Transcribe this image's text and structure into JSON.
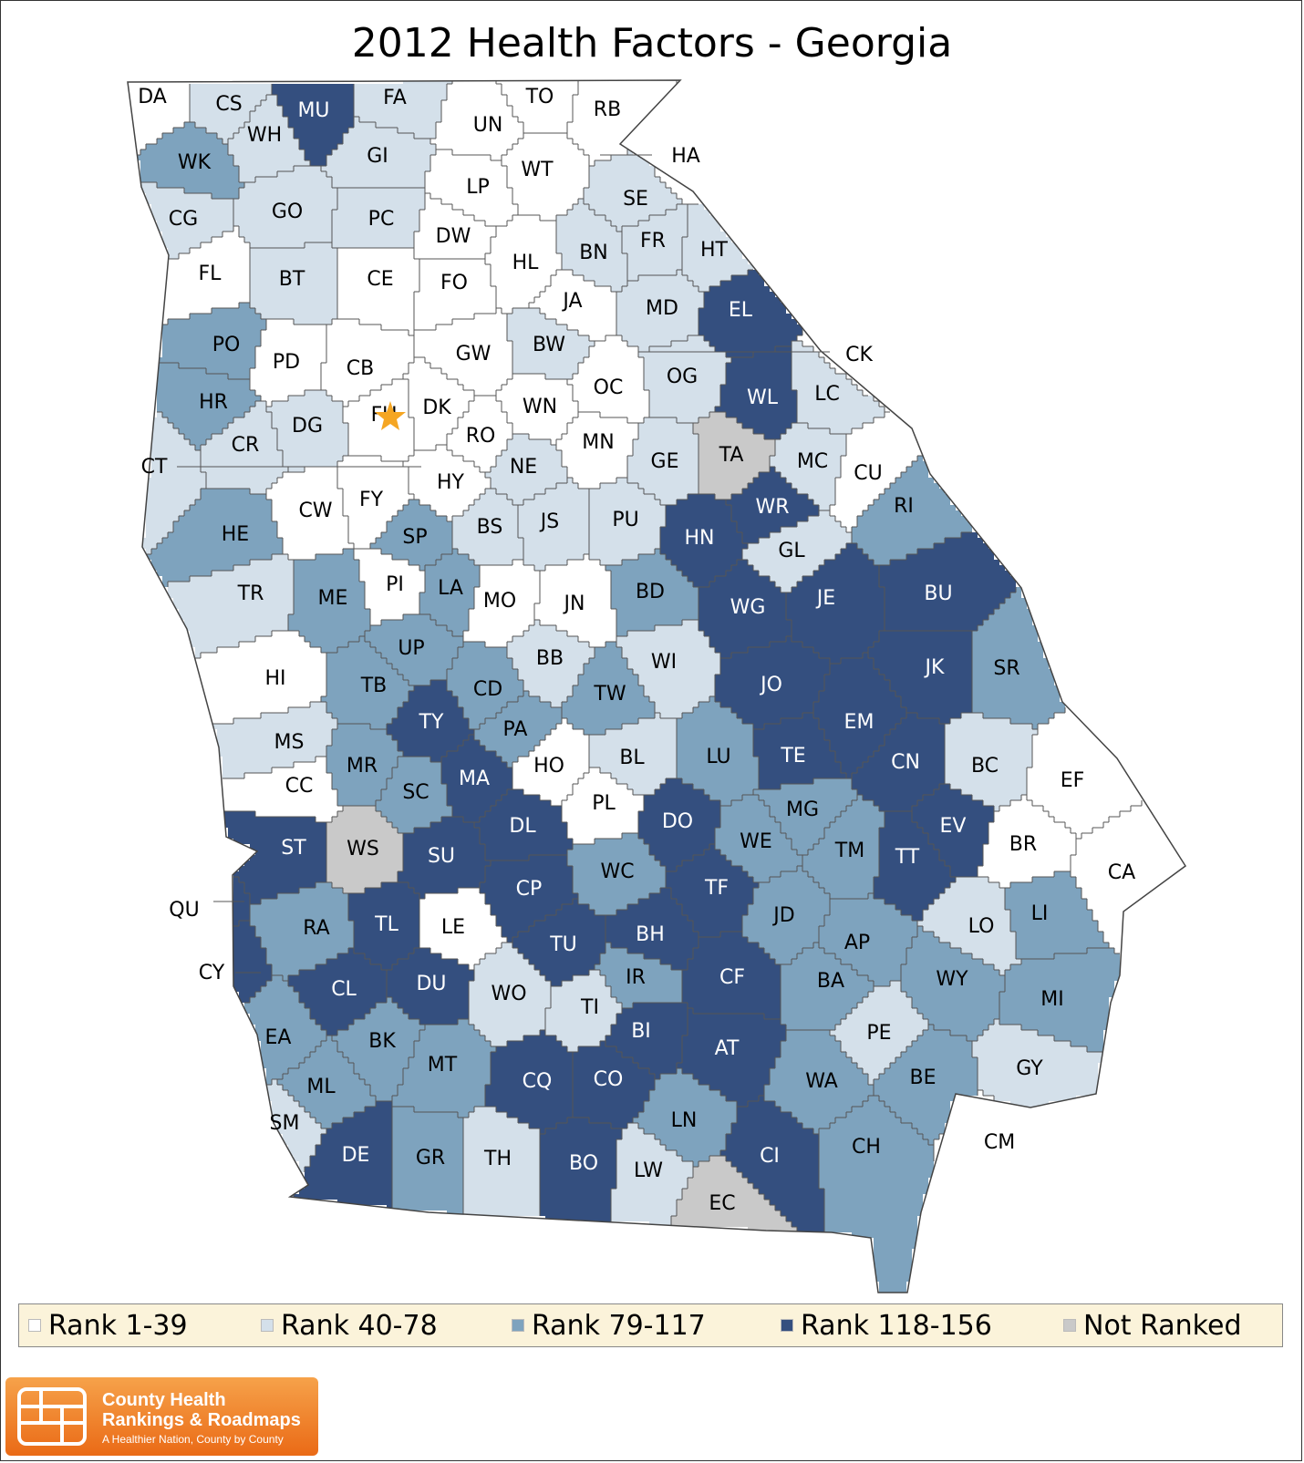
{
  "title": "2012 Health Factors - Georgia",
  "colors": {
    "rank_1_39": "#ffffff",
    "rank_40_78": "#d4e0ea",
    "rank_79_117": "#7ea3be",
    "rank_118_156": "#344f7f",
    "not_ranked": "#c9c9c9",
    "capital_star": "#f5a623"
  },
  "legend": [
    {
      "label": "Rank 1-39",
      "category": "rank_1_39"
    },
    {
      "label": "Rank 40-78",
      "category": "rank_40_78"
    },
    {
      "label": "Rank 79-117",
      "category": "rank_79_117"
    },
    {
      "label": "Rank 118-156",
      "category": "rank_118_156"
    },
    {
      "label": "Not Ranked",
      "category": "not_ranked"
    }
  ],
  "capital": "FU",
  "counties": [
    {
      "code": "DA",
      "category": "rank_1_39"
    },
    {
      "code": "CS",
      "category": "rank_40_78"
    },
    {
      "code": "WH",
      "category": "rank_40_78"
    },
    {
      "code": "MU",
      "category": "rank_118_156"
    },
    {
      "code": "FA",
      "category": "rank_40_78"
    },
    {
      "code": "TO",
      "category": "rank_1_39"
    },
    {
      "code": "UN",
      "category": "rank_1_39"
    },
    {
      "code": "RB",
      "category": "rank_1_39"
    },
    {
      "code": "WK",
      "category": "rank_79_117"
    },
    {
      "code": "GI",
      "category": "rank_40_78"
    },
    {
      "code": "HA",
      "category": "rank_1_39"
    },
    {
      "code": "WT",
      "category": "rank_1_39"
    },
    {
      "code": "LP",
      "category": "rank_1_39"
    },
    {
      "code": "SE",
      "category": "rank_40_78"
    },
    {
      "code": "CG",
      "category": "rank_40_78"
    },
    {
      "code": "GO",
      "category": "rank_40_78"
    },
    {
      "code": "PC",
      "category": "rank_40_78"
    },
    {
      "code": "DW",
      "category": "rank_1_39"
    },
    {
      "code": "BN",
      "category": "rank_40_78"
    },
    {
      "code": "FR",
      "category": "rank_40_78"
    },
    {
      "code": "HT",
      "category": "rank_40_78"
    },
    {
      "code": "FL",
      "category": "rank_1_39"
    },
    {
      "code": "BT",
      "category": "rank_40_78"
    },
    {
      "code": "CE",
      "category": "rank_1_39"
    },
    {
      "code": "HL",
      "category": "rank_1_39"
    },
    {
      "code": "FO",
      "category": "rank_1_39"
    },
    {
      "code": "JA",
      "category": "rank_1_39"
    },
    {
      "code": "MD",
      "category": "rank_40_78"
    },
    {
      "code": "EL",
      "category": "rank_118_156"
    },
    {
      "code": "PO",
      "category": "rank_79_117"
    },
    {
      "code": "PD",
      "category": "rank_1_39"
    },
    {
      "code": "CB",
      "category": "rank_1_39"
    },
    {
      "code": "BW",
      "category": "rank_40_78"
    },
    {
      "code": "GW",
      "category": "rank_1_39"
    },
    {
      "code": "CK",
      "category": "rank_1_39"
    },
    {
      "code": "OG",
      "category": "rank_40_78"
    },
    {
      "code": "OC",
      "category": "rank_1_39"
    },
    {
      "code": "HR",
      "category": "rank_79_117"
    },
    {
      "code": "WN",
      "category": "rank_1_39"
    },
    {
      "code": "WL",
      "category": "rank_118_156"
    },
    {
      "code": "LC",
      "category": "rank_40_78"
    },
    {
      "code": "DK",
      "category": "rank_1_39"
    },
    {
      "code": "FU",
      "category": "rank_1_39"
    },
    {
      "code": "DG",
      "category": "rank_40_78"
    },
    {
      "code": "CR",
      "category": "rank_40_78"
    },
    {
      "code": "RO",
      "category": "rank_1_39"
    },
    {
      "code": "MN",
      "category": "rank_1_39"
    },
    {
      "code": "TA",
      "category": "not_ranked"
    },
    {
      "code": "MC",
      "category": "rank_40_78"
    },
    {
      "code": "CT",
      "category": "rank_40_78"
    },
    {
      "code": "GE",
      "category": "rank_40_78"
    },
    {
      "code": "NE",
      "category": "rank_40_78"
    },
    {
      "code": "HY",
      "category": "rank_1_39"
    },
    {
      "code": "CU",
      "category": "rank_1_39"
    },
    {
      "code": "CW",
      "category": "rank_1_39"
    },
    {
      "code": "FY",
      "category": "rank_1_39"
    },
    {
      "code": "WR",
      "category": "rank_118_156"
    },
    {
      "code": "RI",
      "category": "rank_79_117"
    },
    {
      "code": "JS",
      "category": "rank_40_78"
    },
    {
      "code": "PU",
      "category": "rank_40_78"
    },
    {
      "code": "HN",
      "category": "rank_118_156"
    },
    {
      "code": "HE",
      "category": "rank_79_117"
    },
    {
      "code": "BS",
      "category": "rank_40_78"
    },
    {
      "code": "SP",
      "category": "rank_79_117"
    },
    {
      "code": "GL",
      "category": "rank_40_78"
    },
    {
      "code": "BU",
      "category": "rank_118_156"
    },
    {
      "code": "TR",
      "category": "rank_40_78"
    },
    {
      "code": "ME",
      "category": "rank_79_117"
    },
    {
      "code": "PI",
      "category": "rank_1_39"
    },
    {
      "code": "LA",
      "category": "rank_79_117"
    },
    {
      "code": "MO",
      "category": "rank_1_39"
    },
    {
      "code": "JN",
      "category": "rank_1_39"
    },
    {
      "code": "BD",
      "category": "rank_79_117"
    },
    {
      "code": "WG",
      "category": "rank_118_156"
    },
    {
      "code": "JE",
      "category": "rank_118_156"
    },
    {
      "code": "UP",
      "category": "rank_79_117"
    },
    {
      "code": "BB",
      "category": "rank_40_78"
    },
    {
      "code": "WI",
      "category": "rank_40_78"
    },
    {
      "code": "JK",
      "category": "rank_118_156"
    },
    {
      "code": "SR",
      "category": "rank_79_117"
    },
    {
      "code": "HI",
      "category": "rank_1_39"
    },
    {
      "code": "TB",
      "category": "rank_79_117"
    },
    {
      "code": "CD",
      "category": "rank_79_117"
    },
    {
      "code": "TW",
      "category": "rank_79_117"
    },
    {
      "code": "JO",
      "category": "rank_118_156"
    },
    {
      "code": "TY",
      "category": "rank_118_156"
    },
    {
      "code": "EM",
      "category": "rank_118_156"
    },
    {
      "code": "PA",
      "category": "rank_79_117"
    },
    {
      "code": "MS",
      "category": "rank_40_78"
    },
    {
      "code": "LU",
      "category": "rank_79_117"
    },
    {
      "code": "BL",
      "category": "rank_40_78"
    },
    {
      "code": "TE",
      "category": "rank_118_156"
    },
    {
      "code": "MR",
      "category": "rank_79_117"
    },
    {
      "code": "HO",
      "category": "rank_1_39"
    },
    {
      "code": "MA",
      "category": "rank_118_156"
    },
    {
      "code": "CN",
      "category": "rank_118_156"
    },
    {
      "code": "BC",
      "category": "rank_40_78"
    },
    {
      "code": "EF",
      "category": "rank_1_39"
    },
    {
      "code": "CC",
      "category": "rank_1_39"
    },
    {
      "code": "SC",
      "category": "rank_79_117"
    },
    {
      "code": "PL",
      "category": "rank_1_39"
    },
    {
      "code": "MG",
      "category": "rank_79_117"
    },
    {
      "code": "DL",
      "category": "rank_118_156"
    },
    {
      "code": "DO",
      "category": "rank_118_156"
    },
    {
      "code": "EV",
      "category": "rank_118_156"
    },
    {
      "code": "ST",
      "category": "rank_118_156"
    },
    {
      "code": "WS",
      "category": "not_ranked"
    },
    {
      "code": "WE",
      "category": "rank_79_117"
    },
    {
      "code": "TM",
      "category": "rank_79_117"
    },
    {
      "code": "SU",
      "category": "rank_118_156"
    },
    {
      "code": "BR",
      "category": "rank_1_39"
    },
    {
      "code": "TT",
      "category": "rank_118_156"
    },
    {
      "code": "WC",
      "category": "rank_79_117"
    },
    {
      "code": "CP",
      "category": "rank_118_156"
    },
    {
      "code": "TF",
      "category": "rank_118_156"
    },
    {
      "code": "CA",
      "category": "rank_1_39"
    },
    {
      "code": "QU",
      "category": "rank_118_156"
    },
    {
      "code": "JD",
      "category": "rank_79_117"
    },
    {
      "code": "LI",
      "category": "rank_79_117"
    },
    {
      "code": "RA",
      "category": "rank_79_117"
    },
    {
      "code": "TL",
      "category": "rank_118_156"
    },
    {
      "code": "LE",
      "category": "rank_1_39"
    },
    {
      "code": "LO",
      "category": "rank_40_78"
    },
    {
      "code": "BH",
      "category": "rank_118_156"
    },
    {
      "code": "AP",
      "category": "rank_79_117"
    },
    {
      "code": "TU",
      "category": "rank_118_156"
    },
    {
      "code": "CY",
      "category": "rank_118_156"
    },
    {
      "code": "IR",
      "category": "rank_79_117"
    },
    {
      "code": "CF",
      "category": "rank_118_156"
    },
    {
      "code": "WY",
      "category": "rank_79_117"
    },
    {
      "code": "BA",
      "category": "rank_79_117"
    },
    {
      "code": "CL",
      "category": "rank_118_156"
    },
    {
      "code": "DU",
      "category": "rank_118_156"
    },
    {
      "code": "WO",
      "category": "rank_40_78"
    },
    {
      "code": "MI",
      "category": "rank_79_117"
    },
    {
      "code": "TI",
      "category": "rank_40_78"
    },
    {
      "code": "PE",
      "category": "rank_40_78"
    },
    {
      "code": "EA",
      "category": "rank_79_117"
    },
    {
      "code": "BK",
      "category": "rank_79_117"
    },
    {
      "code": "BI",
      "category": "rank_118_156"
    },
    {
      "code": "AT",
      "category": "rank_118_156"
    },
    {
      "code": "GY",
      "category": "rank_40_78"
    },
    {
      "code": "MT",
      "category": "rank_79_117"
    },
    {
      "code": "BE",
      "category": "rank_79_117"
    },
    {
      "code": "CQ",
      "category": "rank_118_156"
    },
    {
      "code": "CO",
      "category": "rank_118_156"
    },
    {
      "code": "WA",
      "category": "rank_79_117"
    },
    {
      "code": "ML",
      "category": "rank_79_117"
    },
    {
      "code": "SM",
      "category": "rank_40_78"
    },
    {
      "code": "LN",
      "category": "rank_79_117"
    },
    {
      "code": "CM",
      "category": "rank_1_39"
    },
    {
      "code": "CH",
      "category": "rank_79_117"
    },
    {
      "code": "DE",
      "category": "rank_118_156"
    },
    {
      "code": "GR",
      "category": "rank_79_117"
    },
    {
      "code": "TH",
      "category": "rank_40_78"
    },
    {
      "code": "BO",
      "category": "rank_118_156"
    },
    {
      "code": "LW",
      "category": "rank_40_78"
    },
    {
      "code": "CI",
      "category": "rank_118_156"
    },
    {
      "code": "EC",
      "category": "not_ranked"
    }
  ],
  "logo": {
    "line1": "County Health",
    "line2": "Rankings & Roadmaps",
    "tagline": "A Healthier Nation, County by County"
  }
}
